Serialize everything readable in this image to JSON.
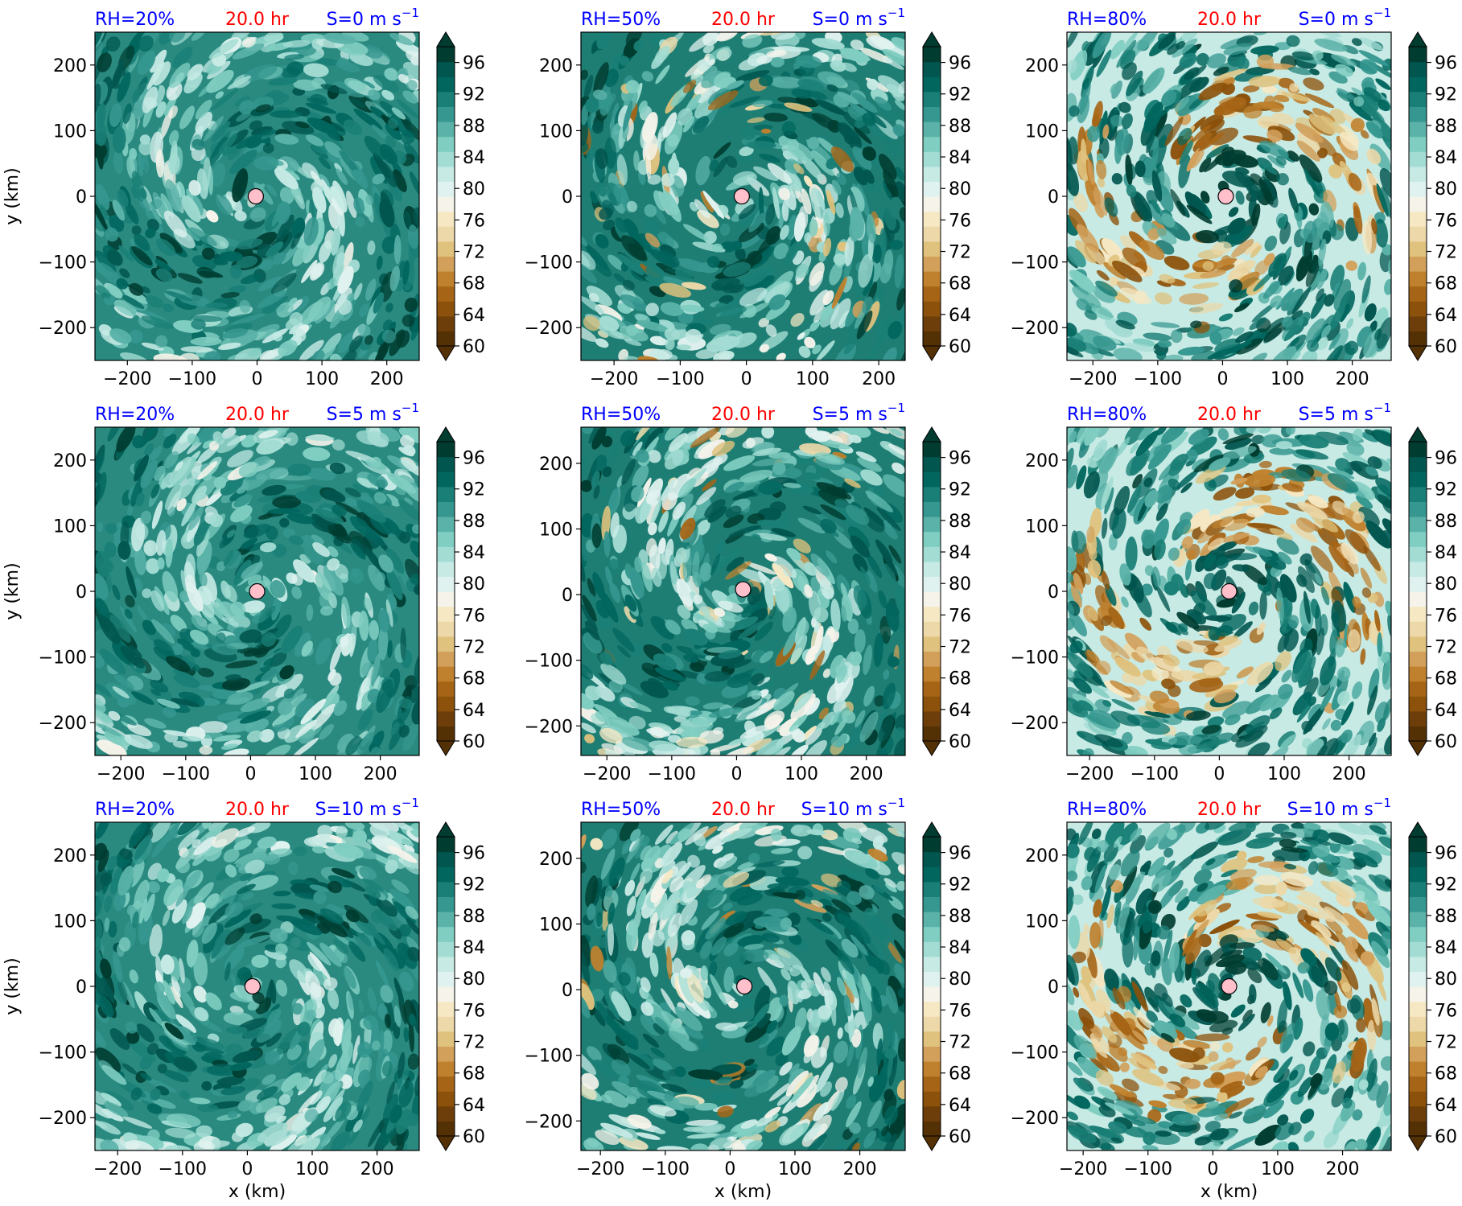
{
  "colors": {
    "title_left": "#0000ff",
    "title_center": "#ff0000",
    "title_right": "#0000ff",
    "center_marker_fill": "#ffc0cb",
    "colormap": [
      "#543005",
      "#6d3e0a",
      "#8c510a",
      "#a66516",
      "#bf812d",
      "#d2a05b",
      "#dfc27d",
      "#ecd8a8",
      "#f6e8c3",
      "#f5f3ea",
      "#e0f2ef",
      "#c7eae5",
      "#a3dcd3",
      "#80cdc1",
      "#5ab2a8",
      "#35978f",
      "#1a7f76",
      "#01665e",
      "#01564f",
      "#003c30"
    ]
  },
  "chart_data": [
    {
      "type": "heatmap",
      "title_left": "RH=20%",
      "title_center": "20.0 hr",
      "title_right": {
        "base": "S=0 m s",
        "exponent": "−1"
      },
      "xlabel": "",
      "ylabel": "y (km)",
      "xlim": [
        -250,
        250
      ],
      "ylim": [
        -250,
        250
      ],
      "xticks": [
        -200,
        -100,
        0,
        100,
        200
      ],
      "yticks": [
        -200,
        -100,
        0,
        100,
        200
      ],
      "center": {
        "x": -2,
        "y": 0
      },
      "colorbar": {
        "min": 60,
        "max": 98,
        "ticks": [
          60,
          64,
          68,
          72,
          76,
          80,
          84,
          88,
          92,
          96
        ],
        "extend": "both"
      }
    },
    {
      "type": "heatmap",
      "title_left": "RH=50%",
      "title_center": "20.0 hr",
      "title_right": {
        "base": "S=0 m s",
        "exponent": "−1"
      },
      "xlabel": "",
      "ylabel": "",
      "xlim": [
        -250,
        240
      ],
      "ylim": [
        -250,
        250
      ],
      "xticks": [
        -200,
        -100,
        0,
        100,
        200
      ],
      "yticks": [
        -200,
        -100,
        0,
        100,
        200
      ],
      "center": {
        "x": -7,
        "y": 0
      },
      "colorbar": {
        "min": 60,
        "max": 98,
        "ticks": [
          60,
          64,
          68,
          72,
          76,
          80,
          84,
          88,
          92,
          96
        ],
        "extend": "both"
      }
    },
    {
      "type": "heatmap",
      "title_left": "RH=80%",
      "title_center": "20.0 hr",
      "title_right": {
        "base": "S=0 m s",
        "exponent": "−1"
      },
      "xlabel": "",
      "ylabel": "",
      "xlim": [
        -240,
        260
      ],
      "ylim": [
        -250,
        250
      ],
      "xticks": [
        -200,
        -100,
        0,
        100,
        200
      ],
      "yticks": [
        -200,
        -100,
        0,
        100,
        200
      ],
      "center": {
        "x": 5,
        "y": 0
      },
      "colorbar": {
        "min": 60,
        "max": 98,
        "ticks": [
          60,
          64,
          68,
          72,
          76,
          80,
          84,
          88,
          92,
          96
        ],
        "extend": "both"
      }
    },
    {
      "type": "heatmap",
      "title_left": "RH=20%",
      "title_center": "20.0 hr",
      "title_right": {
        "base": "S=5 m s",
        "exponent": "−1"
      },
      "xlabel": "",
      "ylabel": "y (km)",
      "xlim": [
        -240,
        260
      ],
      "ylim": [
        -250,
        250
      ],
      "xticks": [
        -200,
        -100,
        0,
        100,
        200
      ],
      "yticks": [
        -200,
        -100,
        0,
        100,
        200
      ],
      "center": {
        "x": 10,
        "y": 0
      },
      "colorbar": {
        "min": 60,
        "max": 98,
        "ticks": [
          60,
          64,
          68,
          72,
          76,
          80,
          84,
          88,
          92,
          96
        ],
        "extend": "both"
      }
    },
    {
      "type": "heatmap",
      "title_left": "RH=50%",
      "title_center": "20.0 hr",
      "title_right": {
        "base": "S=5 m s",
        "exponent": "−1"
      },
      "xlabel": "",
      "ylabel": "",
      "xlim": [
        -240,
        260
      ],
      "ylim": [
        -245,
        255
      ],
      "xticks": [
        -200,
        -100,
        0,
        100,
        200
      ],
      "yticks": [
        -200,
        -100,
        0,
        100,
        200
      ],
      "center": {
        "x": 10,
        "y": 8
      },
      "colorbar": {
        "min": 60,
        "max": 98,
        "ticks": [
          60,
          64,
          68,
          72,
          76,
          80,
          84,
          88,
          92,
          96
        ],
        "extend": "both"
      }
    },
    {
      "type": "heatmap",
      "title_left": "RH=80%",
      "title_center": "20.0 hr",
      "title_right": {
        "base": "S=5 m s",
        "exponent": "−1"
      },
      "xlabel": "",
      "ylabel": "",
      "xlim": [
        -235,
        265
      ],
      "ylim": [
        -250,
        250
      ],
      "xticks": [
        -200,
        -100,
        0,
        100,
        200
      ],
      "yticks": [
        -200,
        -100,
        0,
        100,
        200
      ],
      "center": {
        "x": 15,
        "y": 0
      },
      "colorbar": {
        "min": 60,
        "max": 98,
        "ticks": [
          60,
          64,
          68,
          72,
          76,
          80,
          84,
          88,
          92,
          96
        ],
        "extend": "both"
      }
    },
    {
      "type": "heatmap",
      "title_left": "RH=20%",
      "title_center": "20.0 hr",
      "title_right": {
        "base": "S=10 m s",
        "exponent": "−1"
      },
      "xlabel": "x (km)",
      "ylabel": "y (km)",
      "xlim": [
        -235,
        265
      ],
      "ylim": [
        -250,
        250
      ],
      "xticks": [
        -200,
        -100,
        0,
        100,
        200
      ],
      "yticks": [
        -200,
        -100,
        0,
        100,
        200
      ],
      "center": {
        "x": 8,
        "y": 0
      },
      "colorbar": {
        "min": 60,
        "max": 98,
        "ticks": [
          60,
          64,
          68,
          72,
          76,
          80,
          84,
          88,
          92,
          96
        ],
        "extend": "both"
      }
    },
    {
      "type": "heatmap",
      "title_left": "RH=50%",
      "title_center": "20.0 hr",
      "title_right": {
        "base": "S=10 m s",
        "exponent": "−1"
      },
      "xlabel": "x (km)",
      "ylabel": "",
      "xlim": [
        -230,
        270
      ],
      "ylim": [
        -245,
        255
      ],
      "xticks": [
        -200,
        -100,
        0,
        100,
        200
      ],
      "yticks": [
        -200,
        -100,
        0,
        100,
        200
      ],
      "center": {
        "x": 22,
        "y": 5
      },
      "colorbar": {
        "min": 60,
        "max": 98,
        "ticks": [
          60,
          64,
          68,
          72,
          76,
          80,
          84,
          88,
          92,
          96
        ],
        "extend": "both"
      }
    },
    {
      "type": "heatmap",
      "title_left": "RH=80%",
      "title_center": "20.0 hr",
      "title_right": {
        "base": "S=10 m s",
        "exponent": "−1"
      },
      "xlabel": "x (km)",
      "ylabel": "",
      "xlim": [
        -225,
        275
      ],
      "ylim": [
        -250,
        250
      ],
      "xticks": [
        -200,
        -100,
        0,
        100,
        200
      ],
      "yticks": [
        -200,
        -100,
        0,
        100,
        200
      ],
      "center": {
        "x": 25,
        "y": 0
      },
      "colorbar": {
        "min": 60,
        "max": 98,
        "ticks": [
          60,
          64,
          68,
          72,
          76,
          80,
          84,
          88,
          92,
          96
        ],
        "extend": "both"
      }
    }
  ]
}
